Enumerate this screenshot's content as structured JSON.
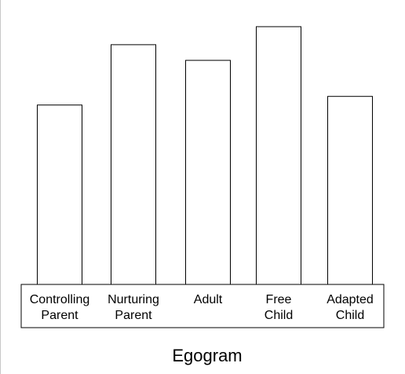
{
  "chart_data": {
    "type": "bar",
    "title": "Egogram",
    "categories": [
      [
        "Controlling",
        "Parent"
      ],
      [
        "Nurturing",
        "Parent"
      ],
      [
        "Adult"
      ],
      [
        "Free",
        "Child"
      ],
      [
        "Adapted",
        "Child"
      ]
    ],
    "category_labels": [
      "Controlling Parent",
      "Nurturing Parent",
      "Adult",
      "Free Child",
      "Adapted Child"
    ],
    "values": [
      229,
      306,
      286,
      329,
      240
    ],
    "ylim": [
      0,
      345
    ],
    "grid": false,
    "legend": "none",
    "colors": {
      "bar_fill": "#ffffff",
      "bar_stroke": "#000000",
      "text": "#000000"
    }
  }
}
